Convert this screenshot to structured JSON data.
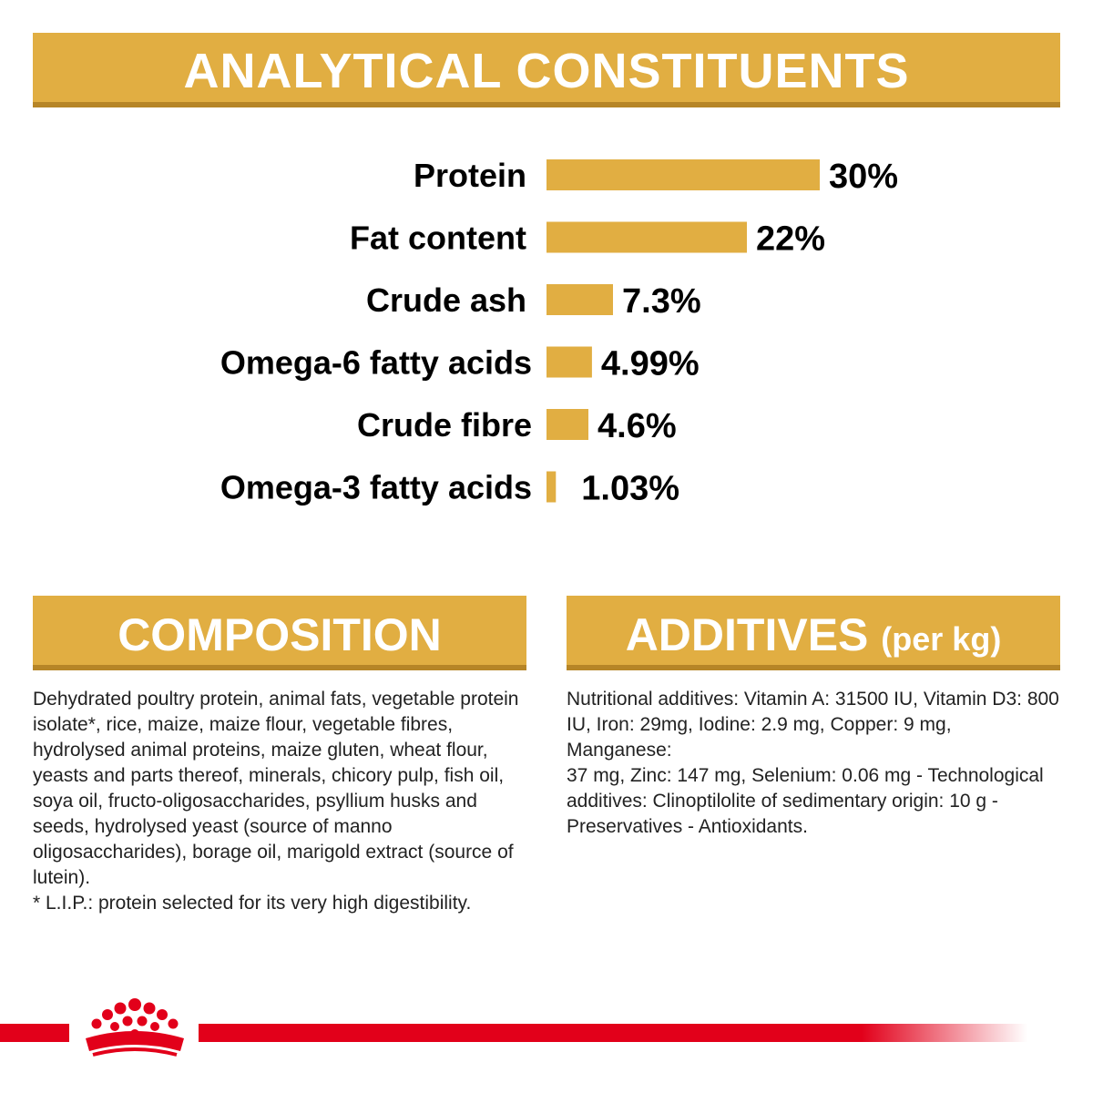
{
  "colors": {
    "gold": "#e1ae42",
    "gold_dark": "#b68527",
    "brand_red": "#e2001a"
  },
  "analytical": {
    "title": "ANALYTICAL CONSTITUENTS"
  },
  "chart_data": {
    "type": "bar",
    "orientation": "horizontal",
    "title": "ANALYTICAL CONSTITUENTS",
    "categories": [
      "Protein",
      "Fat content",
      "Crude ash",
      "Omega-6 fatty acids",
      "Crude fibre",
      "Omega-3 fatty acids"
    ],
    "values": [
      30,
      22,
      7.3,
      4.99,
      4.6,
      1.03
    ],
    "value_labels": [
      "30%",
      "22%",
      "7.3%",
      "4.99%",
      "4.6%",
      "1.03%"
    ],
    "unit": "%",
    "grid": false,
    "axes_visible": false
  },
  "composition": {
    "title": "COMPOSITION",
    "text": "Dehydrated poultry protein, animal fats, vegetable protein\nisolate*, rice, maize, maize flour, vegetable fibres,\nhydrolysed animal proteins, maize gluten, wheat flour,\nyeasts and parts thereof, minerals, chicory pulp, fish oil,\nsoya oil, fructo-oligosaccharides, psyllium husks and\nseeds, hydrolysed yeast (source of manno\noligosaccharides), borage oil, marigold extract (source of\nlutein).\n* L.I.P.: protein selected for its very high digestibility."
  },
  "additives": {
    "title": "ADDITIVES",
    "title_suffix": "(per kg)",
    "text": "Nutritional additives: Vitamin A: 31500 IU, Vitamin D3: 800\nIU, Iron: 29mg, Iodine: 2.9 mg, Copper: 9 mg, Manganese:\n37 mg, Zinc: 147 mg, Selenium: 0.06 mg - Technological\nadditives: Clinoptilolite of sedimentary origin: 10 g -\nPreservatives - Antioxidants."
  },
  "footer": {
    "logo_icon": "crown-logo-icon"
  }
}
